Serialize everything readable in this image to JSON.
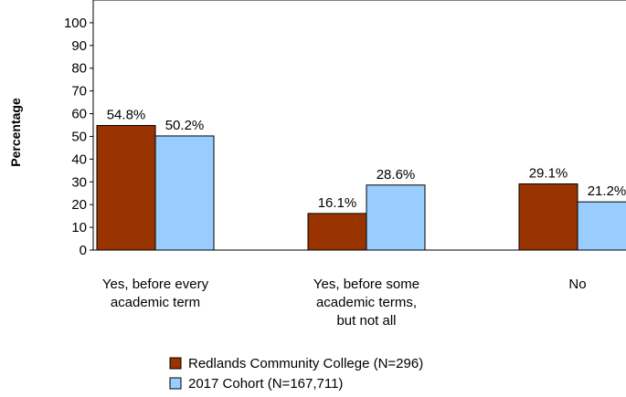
{
  "chart_data": {
    "type": "bar",
    "title": "",
    "xlabel": "",
    "ylabel": "Percentage",
    "ylim": [
      0,
      110
    ],
    "yticks": [
      0,
      10,
      20,
      30,
      40,
      50,
      60,
      70,
      80,
      90,
      100
    ],
    "categories": [
      [
        "Yes, before every",
        "academic term"
      ],
      [
        "Yes, before some",
        "academic terms,",
        "but not all"
      ],
      [
        "No"
      ]
    ],
    "series": [
      {
        "name": "Redlands Community College (N=296)",
        "color": "#993300",
        "values": [
          54.8,
          16.1,
          29.1
        ],
        "labels": [
          "54.8%",
          "16.1%",
          "29.1%"
        ]
      },
      {
        "name": "2017 Cohort (N=167,711)",
        "color": "#99ccff",
        "values": [
          50.2,
          28.6,
          21.2
        ],
        "labels": [
          "50.2%",
          "28.6%",
          "21.2%"
        ]
      }
    ],
    "grid": false,
    "legend": "bottom-center"
  }
}
